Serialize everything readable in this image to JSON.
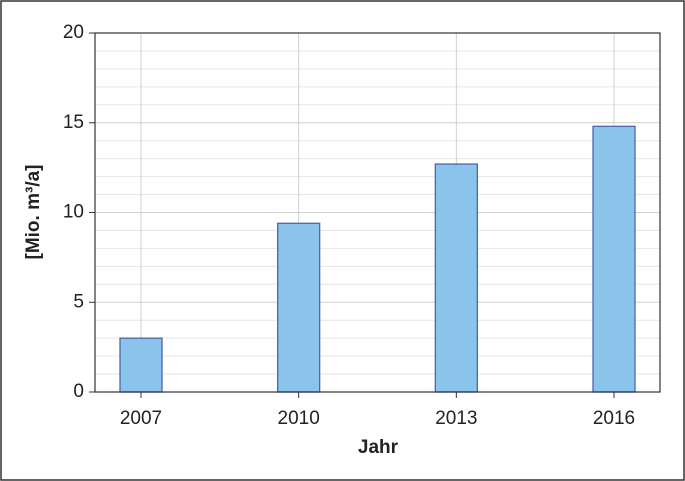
{
  "chart_data": {
    "type": "bar",
    "x_label": "Jahr",
    "y_label": "[Mio. m³/a]",
    "categories": [
      "2007",
      "2010",
      "2013",
      "2016"
    ],
    "values": [
      3.0,
      9.4,
      12.7,
      14.8
    ],
    "color": "#8ac4ea",
    "edge_color": "#4a67b0",
    "ylim": [
      0,
      20
    ],
    "yticks": [
      0,
      5,
      10,
      15,
      20
    ],
    "minor_yticks": [
      1,
      2,
      3,
      4,
      6,
      7,
      8,
      9,
      11,
      12,
      13,
      14,
      16,
      17,
      18,
      19
    ],
    "grid": true
  }
}
